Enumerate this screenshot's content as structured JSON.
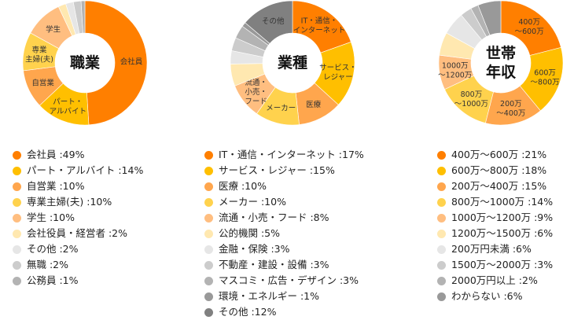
{
  "colors": [
    "#FF7F00",
    "#FFBF00",
    "#FFA64D",
    "#FFD24D",
    "#FFBE80",
    "#FFE8B0",
    "#E6E6E6",
    "#CCCCCC",
    "#B3B3B3",
    "#999999",
    "#808080"
  ],
  "chart_data": [
    {
      "type": "pie",
      "title": "職業",
      "categories": [
        "会社員",
        "パート・アルバイト",
        "自営業",
        "専業主婦(夫)",
        "学生",
        "会社役員・経営者",
        "その他",
        "無職",
        "公務員"
      ],
      "values": [
        49,
        14,
        10,
        10,
        10,
        2,
        2,
        2,
        1
      ],
      "slice_labels": [
        [
          "会社員"
        ],
        [
          "パート・",
          "アルバイト"
        ],
        [
          "自営業"
        ],
        [
          "専業",
          "主婦(夫)"
        ],
        [
          "学生"
        ],
        [],
        [],
        [],
        []
      ],
      "legend": [
        "会社員 :49%",
        "パート・アルバイト :14%",
        "自営業 :10%",
        "専業主婦(夫) :10%",
        "学生 :10%",
        "会社役員・経営者 :2%",
        "その他 :2%",
        "無職 :2%",
        "公務員 :1%"
      ],
      "unit": "%"
    },
    {
      "type": "pie",
      "title": "業種",
      "categories": [
        "IT・通信・インターネット",
        "サービス・レジャー",
        "医療",
        "メーカー",
        "流通・小売・フード",
        "公的機関",
        "金融・保険",
        "不動産・建設・設備",
        "マスコミ・広告・デザイン",
        "環境・エネルギー",
        "その他"
      ],
      "values": [
        17,
        15,
        10,
        10,
        8,
        5,
        3,
        3,
        3,
        1,
        12
      ],
      "slice_labels": [
        [
          "IT・通信・",
          "インターネット"
        ],
        [
          "サービス・",
          "レジャー"
        ],
        [
          "医療"
        ],
        [
          "メーカー"
        ],
        [
          "流通・",
          "小売・",
          "フード"
        ],
        [],
        [],
        [],
        [],
        [],
        [
          "その他"
        ]
      ],
      "legend": [
        "IT・通信・インターネット :17%",
        "サービス・レジャー :15%",
        "医療 :10%",
        "メーカー :10%",
        "流通・小売・フード :8%",
        "公的機関 :5%",
        "金融・保険 :3%",
        "不動産・建設・設備 :3%",
        "マスコミ・広告・デザイン :3%",
        "環境・エネルギー :1%",
        "その他 :12%"
      ],
      "unit": "%"
    },
    {
      "type": "pie",
      "title": "世帯年収",
      "title_lines": [
        "世帯",
        "年収"
      ],
      "categories": [
        "400万〜600万",
        "600万〜800万",
        "200万〜400万",
        "800万〜1000万",
        "1000万〜1200万",
        "1200万〜1500万",
        "200万円未満",
        "1500万〜2000万",
        "2000万円以上",
        "わからない"
      ],
      "values": [
        21,
        18,
        15,
        14,
        9,
        6,
        6,
        3,
        2,
        6
      ],
      "color_index": [
        0,
        1,
        2,
        3,
        4,
        5,
        6,
        7,
        8,
        9
      ],
      "slice_labels": [
        [
          "400万",
          "〜600万"
        ],
        [
          "600万",
          "〜800万"
        ],
        [
          "200万",
          "〜400万"
        ],
        [
          "800万",
          "〜1000万"
        ],
        [
          "1000万",
          "〜1200万"
        ],
        [],
        [],
        [],
        [],
        []
      ],
      "legend": [
        "400万〜600万 :21%",
        "600万〜800万 :18%",
        "200万〜400万 :15%",
        "800万〜1000万 :14%",
        "1000万〜1200万 :9%",
        "1200万〜1500万 :6%",
        "200万円未満 :6%",
        "1500万〜2000万 :3%",
        "2000万円以上 :2%",
        "わからない :6%"
      ],
      "unit": "%"
    }
  ]
}
